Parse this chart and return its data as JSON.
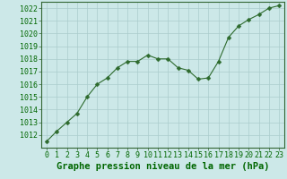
{
  "x": [
    0,
    1,
    2,
    3,
    4,
    5,
    6,
    7,
    8,
    9,
    10,
    11,
    12,
    13,
    14,
    15,
    16,
    17,
    18,
    19,
    20,
    21,
    22,
    23
  ],
  "y": [
    1011.5,
    1012.3,
    1013.0,
    1013.7,
    1015.0,
    1016.0,
    1016.5,
    1017.3,
    1017.8,
    1017.8,
    1018.3,
    1018.0,
    1018.0,
    1017.3,
    1017.1,
    1016.4,
    1016.5,
    1017.8,
    1019.7,
    1020.6,
    1021.1,
    1021.5,
    1022.0,
    1022.2
  ],
  "line_color": "#2d6a2d",
  "marker": "D",
  "marker_size": 2.5,
  "background_color": "#cce8e8",
  "grid_color": "#aacccc",
  "xlabel": "Graphe pression niveau de la mer (hPa)",
  "xlabel_fontsize": 7.5,
  "ylim": [
    1011.0,
    1022.5
  ],
  "xlim": [
    -0.5,
    23.5
  ],
  "ytick_min": 1012,
  "ytick_max": 1022,
  "ytick_step": 1,
  "xtick_labels": [
    "0",
    "1",
    "2",
    "3",
    "4",
    "5",
    "6",
    "7",
    "8",
    "9",
    "10",
    "11",
    "12",
    "13",
    "14",
    "15",
    "16",
    "17",
    "18",
    "19",
    "20",
    "21",
    "22",
    "23"
  ],
  "tick_fontsize": 6.0,
  "spine_color": "#336633",
  "label_color": "#006600"
}
